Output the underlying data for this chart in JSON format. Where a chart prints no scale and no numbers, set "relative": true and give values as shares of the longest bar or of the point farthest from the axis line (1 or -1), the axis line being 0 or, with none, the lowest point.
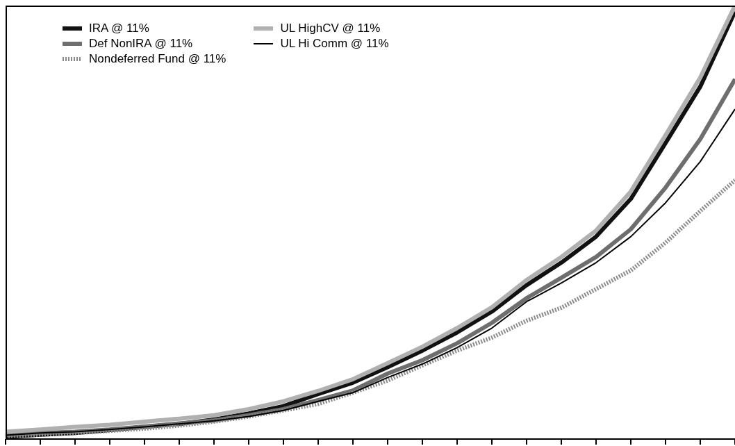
{
  "chart_data": {
    "type": "line",
    "relative": true,
    "legend": "top left",
    "categories": [
      null,
      null,
      null,
      null,
      null,
      null,
      null,
      null,
      null,
      null,
      null,
      null,
      null,
      null,
      null,
      null,
      null,
      null,
      null,
      null,
      null,
      null
    ],
    "series": [
      {
        "name": "IRA @ 11%",
        "color": "#111111",
        "values": [
          0.005,
          0.01,
          0.014,
          0.021,
          0.028,
          0.035,
          0.045,
          0.059,
          0.076,
          0.104,
          0.13,
          0.166,
          0.204,
          0.246,
          0.294,
          0.355,
          0.407,
          0.467,
          0.554,
          0.683,
          0.813,
          0.986
        ]
      },
      {
        "name": "Def NonIRA @ 11%",
        "color": "#6e6e6e",
        "values": [
          0.009,
          0.014,
          0.017,
          0.022,
          0.029,
          0.036,
          0.043,
          0.055,
          0.069,
          0.09,
          0.112,
          0.151,
          0.182,
          0.221,
          0.268,
          0.325,
          0.372,
          0.42,
          0.484,
          0.58,
          0.692,
          0.83
        ]
      },
      {
        "name": "Nondeferred Fund @ 11%",
        "color": "#8a8a8a",
        "line_style": "dotted",
        "values": [
          0.007,
          0.01,
          0.014,
          0.019,
          0.024,
          0.031,
          0.04,
          0.052,
          0.066,
          0.081,
          0.107,
          0.135,
          0.17,
          0.204,
          0.234,
          0.273,
          0.303,
          0.346,
          0.389,
          0.453,
          0.526,
          0.597
        ]
      },
      {
        "name": "UL HighCV @ 11%",
        "color": "#b0b0b0",
        "values": [
          0.017,
          0.022,
          0.028,
          0.033,
          0.04,
          0.047,
          0.055,
          0.069,
          0.087,
          0.111,
          0.138,
          0.175,
          0.213,
          0.256,
          0.304,
          0.367,
          0.42,
          0.481,
          0.571,
          0.701,
          0.834,
          1
        ]
      },
      {
        "name": "UL Hi Comm @ 11%",
        "color": "#000000",
        "values": [
          0.009,
          0.014,
          0.017,
          0.022,
          0.028,
          0.035,
          0.042,
          0.052,
          0.066,
          0.087,
          0.107,
          0.142,
          0.173,
          0.211,
          0.256,
          0.317,
          0.36,
          0.407,
          0.467,
          0.545,
          0.64,
          0.761
        ]
      }
    ]
  }
}
